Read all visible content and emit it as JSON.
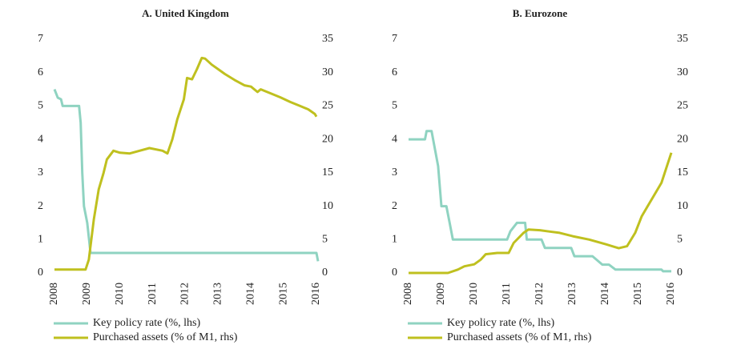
{
  "chart_data": [
    {
      "type": "line",
      "title": "A. United Kingdom",
      "xlim": [
        2008,
        2016
      ],
      "xticks": [
        2008,
        2009,
        2010,
        2011,
        2012,
        2013,
        2014,
        2015,
        2016
      ],
      "ylim": [
        0,
        7
      ],
      "yticks": [
        0,
        1,
        2,
        3,
        4,
        5,
        6,
        7
      ],
      "y2lim": [
        0,
        35
      ],
      "y2ticks": [
        0,
        5,
        10,
        15,
        20,
        25,
        30,
        35
      ],
      "series": [
        {
          "name": "Key policy rate (%, lhs)",
          "color": "#8fd3c1",
          "axis": "y",
          "x": [
            2008.0,
            2008.1,
            2008.2,
            2008.25,
            2008.75,
            2008.8,
            2008.85,
            2008.9,
            2009.0,
            2009.1,
            2016.0,
            2016.05
          ],
          "values": [
            5.5,
            5.25,
            5.2,
            5.0,
            5.0,
            4.5,
            3.0,
            2.0,
            1.5,
            0.6,
            0.6,
            0.35
          ]
        },
        {
          "name": "Purchased assets (% of M1, rhs)",
          "color": "#bfc01f",
          "axis": "y2",
          "x": [
            2008.0,
            2008.95,
            2009.05,
            2009.2,
            2009.35,
            2009.5,
            2009.6,
            2009.8,
            2010.0,
            2010.3,
            2010.6,
            2010.9,
            2011.3,
            2011.45,
            2011.6,
            2011.75,
            2011.95,
            2012.05,
            2012.2,
            2012.35,
            2012.5,
            2012.6,
            2012.8,
            2013.0,
            2013.2,
            2013.5,
            2013.8,
            2014.0,
            2014.2,
            2014.3,
            2014.6,
            2014.9,
            2015.2,
            2015.5,
            2015.75,
            2015.95,
            2016.0
          ],
          "values": [
            0.5,
            0.5,
            2,
            8,
            12.5,
            15,
            17,
            18.3,
            18,
            17.9,
            18.3,
            18.7,
            18.3,
            17.9,
            20,
            23,
            26,
            29.2,
            29,
            30.5,
            32.2,
            32.1,
            31.2,
            30.5,
            29.8,
            28.9,
            28.1,
            27.9,
            27.1,
            27.5,
            26.9,
            26.3,
            25.6,
            25,
            24.5,
            23.8,
            23.4
          ]
        }
      ]
    },
    {
      "type": "line",
      "title": "B. Eurozone",
      "xlim": [
        2008,
        2016
      ],
      "xticks": [
        2008,
        2009,
        2010,
        2011,
        2012,
        2013,
        2014,
        2015,
        2016
      ],
      "ylim": [
        0,
        7
      ],
      "yticks": [
        0,
        1,
        2,
        3,
        4,
        5,
        6,
        7
      ],
      "y2lim": [
        0,
        35
      ],
      "y2ticks": [
        0,
        5,
        10,
        15,
        20,
        25,
        30,
        35
      ],
      "series": [
        {
          "name": "Key policy rate (%, lhs)",
          "color": "#8fd3c1",
          "axis": "y",
          "x": [
            2008.0,
            2008.5,
            2008.55,
            2008.7,
            2008.9,
            2009.0,
            2009.15,
            2009.25,
            2009.35,
            2011.0,
            2011.1,
            2011.3,
            2011.55,
            2011.6,
            2012.05,
            2012.15,
            2012.95,
            2013.05,
            2013.6,
            2013.9,
            2014.1,
            2014.3,
            2015.7,
            2015.75,
            2016.0
          ],
          "values": [
            4.0,
            4.0,
            4.25,
            4.25,
            3.2,
            2.0,
            2.0,
            1.5,
            1.0,
            1.0,
            1.25,
            1.5,
            1.5,
            1.0,
            1.0,
            0.75,
            0.75,
            0.5,
            0.5,
            0.25,
            0.25,
            0.1,
            0.1,
            0.05,
            0.05
          ]
        },
        {
          "name": "Purchased assets (% of M1, rhs)",
          "color": "#bfc01f",
          "axis": "y2",
          "x": [
            2008.0,
            2009.2,
            2009.5,
            2009.7,
            2010.0,
            2010.2,
            2010.35,
            2010.7,
            2011.05,
            2011.2,
            2011.5,
            2011.65,
            2012.0,
            2012.3,
            2012.6,
            2013.0,
            2013.5,
            2014.0,
            2014.4,
            2014.65,
            2014.9,
            2015.1,
            2015.4,
            2015.7,
            2015.9,
            2016.0
          ],
          "values": [
            0,
            0,
            0.5,
            1,
            1.3,
            2,
            2.8,
            3,
            3,
            4.5,
            6,
            6.5,
            6.4,
            6.2,
            6,
            5.5,
            5,
            4.3,
            3.7,
            4,
            6,
            8.5,
            11,
            13.5,
            16.5,
            18
          ]
        }
      ]
    }
  ]
}
